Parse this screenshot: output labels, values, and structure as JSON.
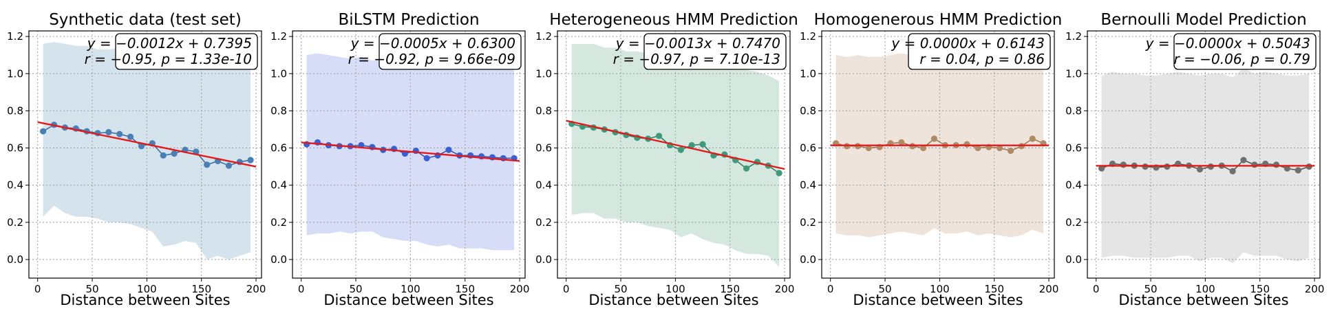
{
  "chart_data": [
    {
      "type": "line",
      "title": "Synthetic data (test set)",
      "xlabel": "Distance between Sites",
      "ylabel": "",
      "xlim": [
        -8,
        205
      ],
      "ylim": [
        -0.1,
        1.23
      ],
      "xticks": [
        0,
        50,
        100,
        150,
        200
      ],
      "yticks": [
        0.0,
        0.2,
        0.4,
        0.6,
        0.8,
        1.0,
        1.2
      ],
      "grid": true,
      "band_color": "#c7d9e6",
      "point_color": "#4a7fb5",
      "line_color": "#3f6f9e",
      "fit_color": "#e31a1c",
      "annotation": [
        "y = −0.0012x + 0.7395",
        "r = −0.95, p = 1.33e-10"
      ],
      "fit": {
        "slope": -0.0012,
        "intercept": 0.7395
      },
      "x": [
        5,
        15,
        25,
        35,
        45,
        55,
        65,
        75,
        85,
        95,
        105,
        115,
        125,
        135,
        145,
        155,
        165,
        175,
        185,
        195
      ],
      "y": [
        0.69,
        0.725,
        0.71,
        0.705,
        0.69,
        0.68,
        0.685,
        0.675,
        0.66,
        0.61,
        0.625,
        0.56,
        0.57,
        0.59,
        0.58,
        0.51,
        0.53,
        0.505,
        0.525,
        0.535
      ],
      "band_upper": [
        1.16,
        1.17,
        1.16,
        1.15,
        1.15,
        1.13,
        1.13,
        1.14,
        1.13,
        1.13,
        1.12,
        1.11,
        1.11,
        1.11,
        1.12,
        1.1,
        1.1,
        1.1,
        1.11,
        1.12
      ],
      "band_lower": [
        0.23,
        0.29,
        0.25,
        0.23,
        0.23,
        0.22,
        0.2,
        0.2,
        0.19,
        0.17,
        0.15,
        0.07,
        0.08,
        0.1,
        0.09,
        0.0,
        0.02,
        0.0,
        0.02,
        0.04
      ]
    },
    {
      "type": "line",
      "title": "BiLSTM Prediction",
      "xlabel": "Distance between Sites",
      "ylabel": "",
      "xlim": [
        -8,
        205
      ],
      "ylim": [
        -0.1,
        1.23
      ],
      "xticks": [
        0,
        50,
        100,
        150,
        200
      ],
      "yticks": [
        0.0,
        0.2,
        0.4,
        0.6,
        0.8,
        1.0,
        1.2
      ],
      "grid": true,
      "band_color": "#c9d1f3",
      "point_color": "#3a5fd0",
      "line_color": "#3a55b0",
      "fit_color": "#e31a1c",
      "annotation": [
        "y = −0.0005x + 0.6300",
        "r = −0.92, p = 9.66e-09"
      ],
      "fit": {
        "slope": -0.0005,
        "intercept": 0.63
      },
      "x": [
        5,
        15,
        25,
        35,
        45,
        55,
        65,
        75,
        85,
        95,
        105,
        115,
        125,
        135,
        145,
        155,
        165,
        175,
        185,
        195
      ],
      "y": [
        0.62,
        0.63,
        0.615,
        0.61,
        0.61,
        0.615,
        0.605,
        0.59,
        0.595,
        0.57,
        0.585,
        0.545,
        0.56,
        0.59,
        0.56,
        0.56,
        0.555,
        0.55,
        0.545,
        0.545
      ],
      "band_upper": [
        1.1,
        1.11,
        1.1,
        1.09,
        1.08,
        1.09,
        1.07,
        1.08,
        1.07,
        1.06,
        1.07,
        1.04,
        1.05,
        1.06,
        1.05,
        1.04,
        1.04,
        1.02,
        1.03,
        1.02
      ],
      "band_lower": [
        0.13,
        0.14,
        0.14,
        0.15,
        0.14,
        0.15,
        0.15,
        0.12,
        0.11,
        0.1,
        0.1,
        0.08,
        0.07,
        0.08,
        0.06,
        0.06,
        0.06,
        0.05,
        0.05,
        0.05
      ]
    },
    {
      "type": "line",
      "title": "Heterogeneous HMM Prediction",
      "xlabel": "Distance between Sites",
      "ylabel": "",
      "xlim": [
        -8,
        205
      ],
      "ylim": [
        -0.1,
        1.23
      ],
      "xticks": [
        0,
        50,
        100,
        150,
        200
      ],
      "yticks": [
        0.0,
        0.2,
        0.4,
        0.6,
        0.8,
        1.0,
        1.2
      ],
      "grid": true,
      "band_color": "#c6e0d6",
      "point_color": "#3e9a7a",
      "line_color": "#2f7f64",
      "fit_color": "#e31a1c",
      "annotation": [
        "y = −0.0013x + 0.7470",
        "r = −0.97, p = 7.10e-13"
      ],
      "fit": {
        "slope": -0.0013,
        "intercept": 0.747
      },
      "x": [
        5,
        15,
        25,
        35,
        45,
        55,
        65,
        75,
        85,
        95,
        105,
        115,
        125,
        135,
        145,
        155,
        165,
        175,
        185,
        195
      ],
      "y": [
        0.73,
        0.715,
        0.71,
        0.7,
        0.685,
        0.67,
        0.655,
        0.65,
        0.665,
        0.615,
        0.59,
        0.615,
        0.62,
        0.56,
        0.565,
        0.535,
        0.49,
        0.525,
        0.505,
        0.465
      ],
      "band_upper": [
        1.16,
        1.16,
        1.16,
        1.14,
        1.14,
        1.12,
        1.12,
        1.11,
        1.12,
        1.1,
        1.09,
        1.07,
        1.08,
        1.07,
        1.05,
        1.04,
        1.02,
        1.01,
        0.99,
        0.96
      ],
      "band_lower": [
        0.24,
        0.25,
        0.25,
        0.22,
        0.22,
        0.2,
        0.2,
        0.18,
        0.17,
        0.16,
        0.12,
        0.14,
        0.11,
        0.09,
        0.08,
        0.05,
        0.03,
        0.03,
        0.02,
        -0.04
      ]
    },
    {
      "type": "line",
      "title": "Homogenerous HMM Prediction",
      "xlabel": "Distance between Sites",
      "ylabel": "",
      "xlim": [
        -8,
        205
      ],
      "ylim": [
        -0.1,
        1.23
      ],
      "xticks": [
        0,
        50,
        100,
        150,
        200
      ],
      "yticks": [
        0.0,
        0.2,
        0.4,
        0.6,
        0.8,
        1.0,
        1.2
      ],
      "grid": true,
      "band_color": "#eadbd0",
      "point_color": "#b08a66",
      "line_color": "#9a7654",
      "fit_color": "#e31a1c",
      "annotation": [
        "y = 0.0000x + 0.6143",
        "r = 0.04, p = 0.86"
      ],
      "fit": {
        "slope": 0.0,
        "intercept": 0.6143
      },
      "x": [
        5,
        15,
        25,
        35,
        45,
        55,
        65,
        75,
        85,
        95,
        105,
        115,
        125,
        135,
        145,
        155,
        165,
        175,
        185,
        195
      ],
      "y": [
        0.625,
        0.61,
        0.61,
        0.6,
        0.605,
        0.625,
        0.63,
        0.61,
        0.6,
        0.65,
        0.615,
        0.615,
        0.62,
        0.6,
        0.605,
        0.6,
        0.585,
        0.61,
        0.65,
        0.625
      ],
      "band_upper": [
        1.1,
        1.09,
        1.1,
        1.09,
        1.09,
        1.1,
        1.11,
        1.1,
        1.09,
        1.12,
        1.1,
        1.11,
        1.1,
        1.09,
        1.09,
        1.08,
        1.08,
        1.09,
        1.12,
        1.1
      ],
      "band_lower": [
        0.14,
        0.13,
        0.13,
        0.12,
        0.13,
        0.14,
        0.15,
        0.14,
        0.13,
        0.17,
        0.14,
        0.14,
        0.15,
        0.13,
        0.14,
        0.13,
        0.12,
        0.13,
        0.16,
        0.14
      ]
    },
    {
      "type": "line",
      "title": "Bernoulli Model Prediction",
      "xlabel": "Distance between Sites",
      "ylabel": "",
      "xlim": [
        -8,
        205
      ],
      "ylim": [
        -0.1,
        1.23
      ],
      "xticks": [
        0,
        50,
        100,
        150,
        200
      ],
      "yticks": [
        0.0,
        0.2,
        0.4,
        0.6,
        0.8,
        1.0,
        1.2
      ],
      "grid": true,
      "band_color": "#dcdcdc",
      "point_color": "#6f6f6f",
      "line_color": "#555555",
      "fit_color": "#e31a1c",
      "annotation": [
        "y = −0.0000x + 0.5043",
        "r = −0.06, p = 0.79"
      ],
      "fit": {
        "slope": 0.0,
        "intercept": 0.5043
      },
      "x": [
        5,
        15,
        25,
        35,
        45,
        55,
        65,
        75,
        85,
        95,
        105,
        115,
        125,
        135,
        145,
        155,
        165,
        175,
        185,
        195
      ],
      "y": [
        0.49,
        0.515,
        0.51,
        0.505,
        0.5,
        0.495,
        0.5,
        0.515,
        0.505,
        0.485,
        0.5,
        0.505,
        0.475,
        0.535,
        0.51,
        0.515,
        0.51,
        0.49,
        0.48,
        0.5
      ],
      "band_upper": [
        0.99,
        1.01,
        1.0,
        1.0,
        0.99,
        0.99,
        1.0,
        1.01,
        1.0,
        0.99,
        1.0,
        1.0,
        0.98,
        1.03,
        1.0,
        1.01,
        1.0,
        0.99,
        0.99,
        1.0
      ],
      "band_lower": [
        0.01,
        0.02,
        0.02,
        0.01,
        0.01,
        0.01,
        0.01,
        0.02,
        0.02,
        -0.01,
        0.01,
        0.01,
        -0.02,
        0.04,
        0.02,
        0.02,
        0.02,
        0.0,
        -0.01,
        0.01
      ]
    }
  ]
}
